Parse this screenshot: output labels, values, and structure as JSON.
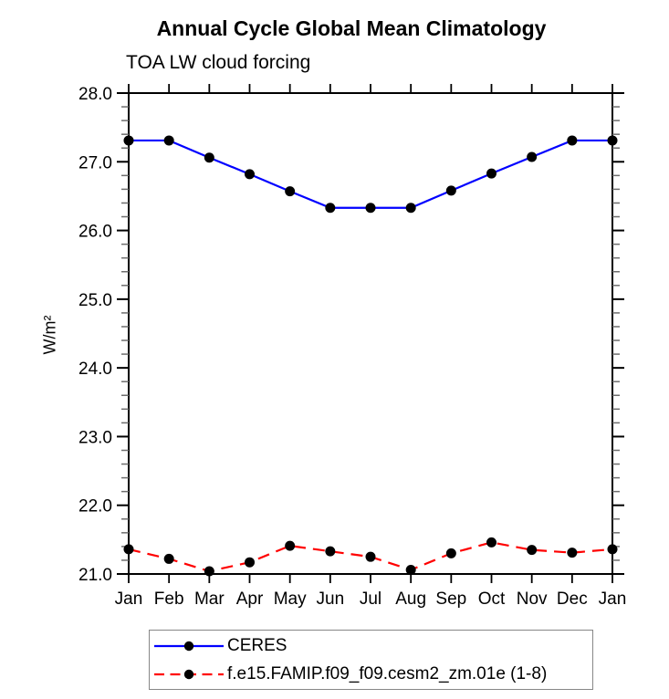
{
  "header": {
    "title": "Annual Cycle Global Mean Climatology",
    "subtitle": "TOA LW cloud forcing"
  },
  "chart_data": {
    "type": "line",
    "title": "Annual Cycle Global Mean Climatology",
    "subtitle": "TOA LW cloud forcing",
    "xlabel": "",
    "ylabel": "W/m²",
    "categories": [
      "Jan",
      "Feb",
      "Mar",
      "Apr",
      "May",
      "Jun",
      "Jul",
      "Aug",
      "Sep",
      "Oct",
      "Nov",
      "Dec",
      "Jan"
    ],
    "ylim": [
      21.0,
      28.0
    ],
    "ytick_major": 1.0,
    "ytick_minor": 0.2,
    "ytick_labels": [
      "21.0",
      "22.0",
      "23.0",
      "24.0",
      "25.0",
      "26.0",
      "27.0",
      "28.0"
    ],
    "grid": false,
    "legend_position": "bottom",
    "frame_color": "#000000",
    "series": [
      {
        "name": "CERES",
        "color": "#0000ff",
        "style": "solid",
        "marker": "circle",
        "marker_color": "#000000",
        "values": [
          27.31,
          27.31,
          27.06,
          26.82,
          26.57,
          26.33,
          26.33,
          26.33,
          26.58,
          26.83,
          27.07,
          27.31,
          27.31
        ]
      },
      {
        "name": "f.e15.FAMIP.f09_f09.cesm2_zm.01e (1-8)",
        "color": "#ff0000",
        "style": "dashed",
        "marker": "circle",
        "marker_color": "#000000",
        "values": [
          21.36,
          21.22,
          21.04,
          21.17,
          21.41,
          21.33,
          21.25,
          21.06,
          21.3,
          21.46,
          21.35,
          21.31,
          21.36
        ]
      }
    ]
  }
}
